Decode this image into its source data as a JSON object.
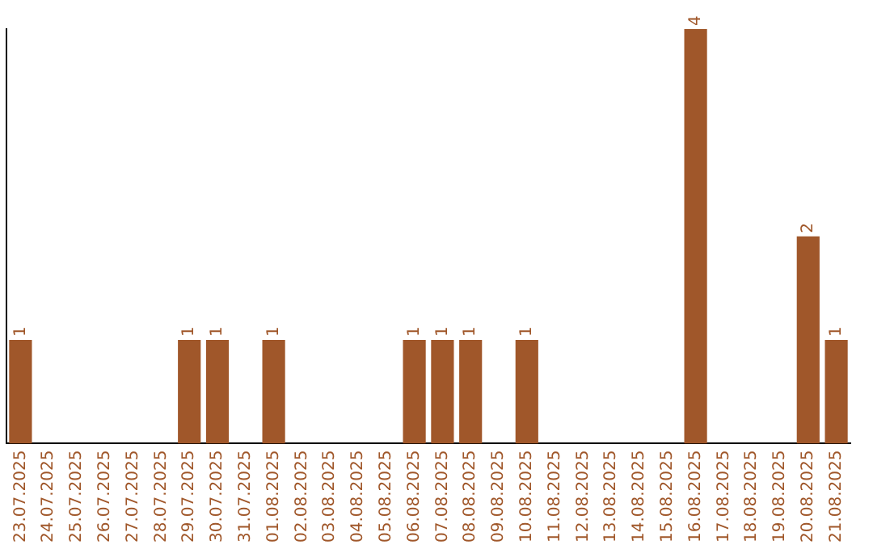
{
  "chart_data": {
    "type": "bar",
    "categories": [
      "23.07.2025",
      "24.07.2025",
      "25.07.2025",
      "26.07.2025",
      "27.07.2025",
      "28.07.2025",
      "29.07.2025",
      "30.07.2025",
      "31.07.2025",
      "01.08.2025",
      "02.08.2025",
      "03.08.2025",
      "04.08.2025",
      "05.08.2025",
      "06.08.2025",
      "07.08.2025",
      "08.08.2025",
      "09.08.2025",
      "10.08.2025",
      "11.08.2025",
      "12.08.2025",
      "13.08.2025",
      "14.08.2025",
      "15.08.2025",
      "16.08.2025",
      "17.08.2025",
      "18.08.2025",
      "19.08.2025",
      "20.08.2025",
      "21.08.2025"
    ],
    "values": [
      1,
      null,
      null,
      null,
      null,
      null,
      1,
      1,
      null,
      1,
      null,
      null,
      null,
      null,
      1,
      1,
      1,
      null,
      1,
      null,
      null,
      null,
      null,
      null,
      4,
      null,
      null,
      null,
      2,
      1
    ],
    "color": "#a0572a",
    "data_labels": true,
    "grid": false,
    "legend": false,
    "tick_labels": "x"
  }
}
